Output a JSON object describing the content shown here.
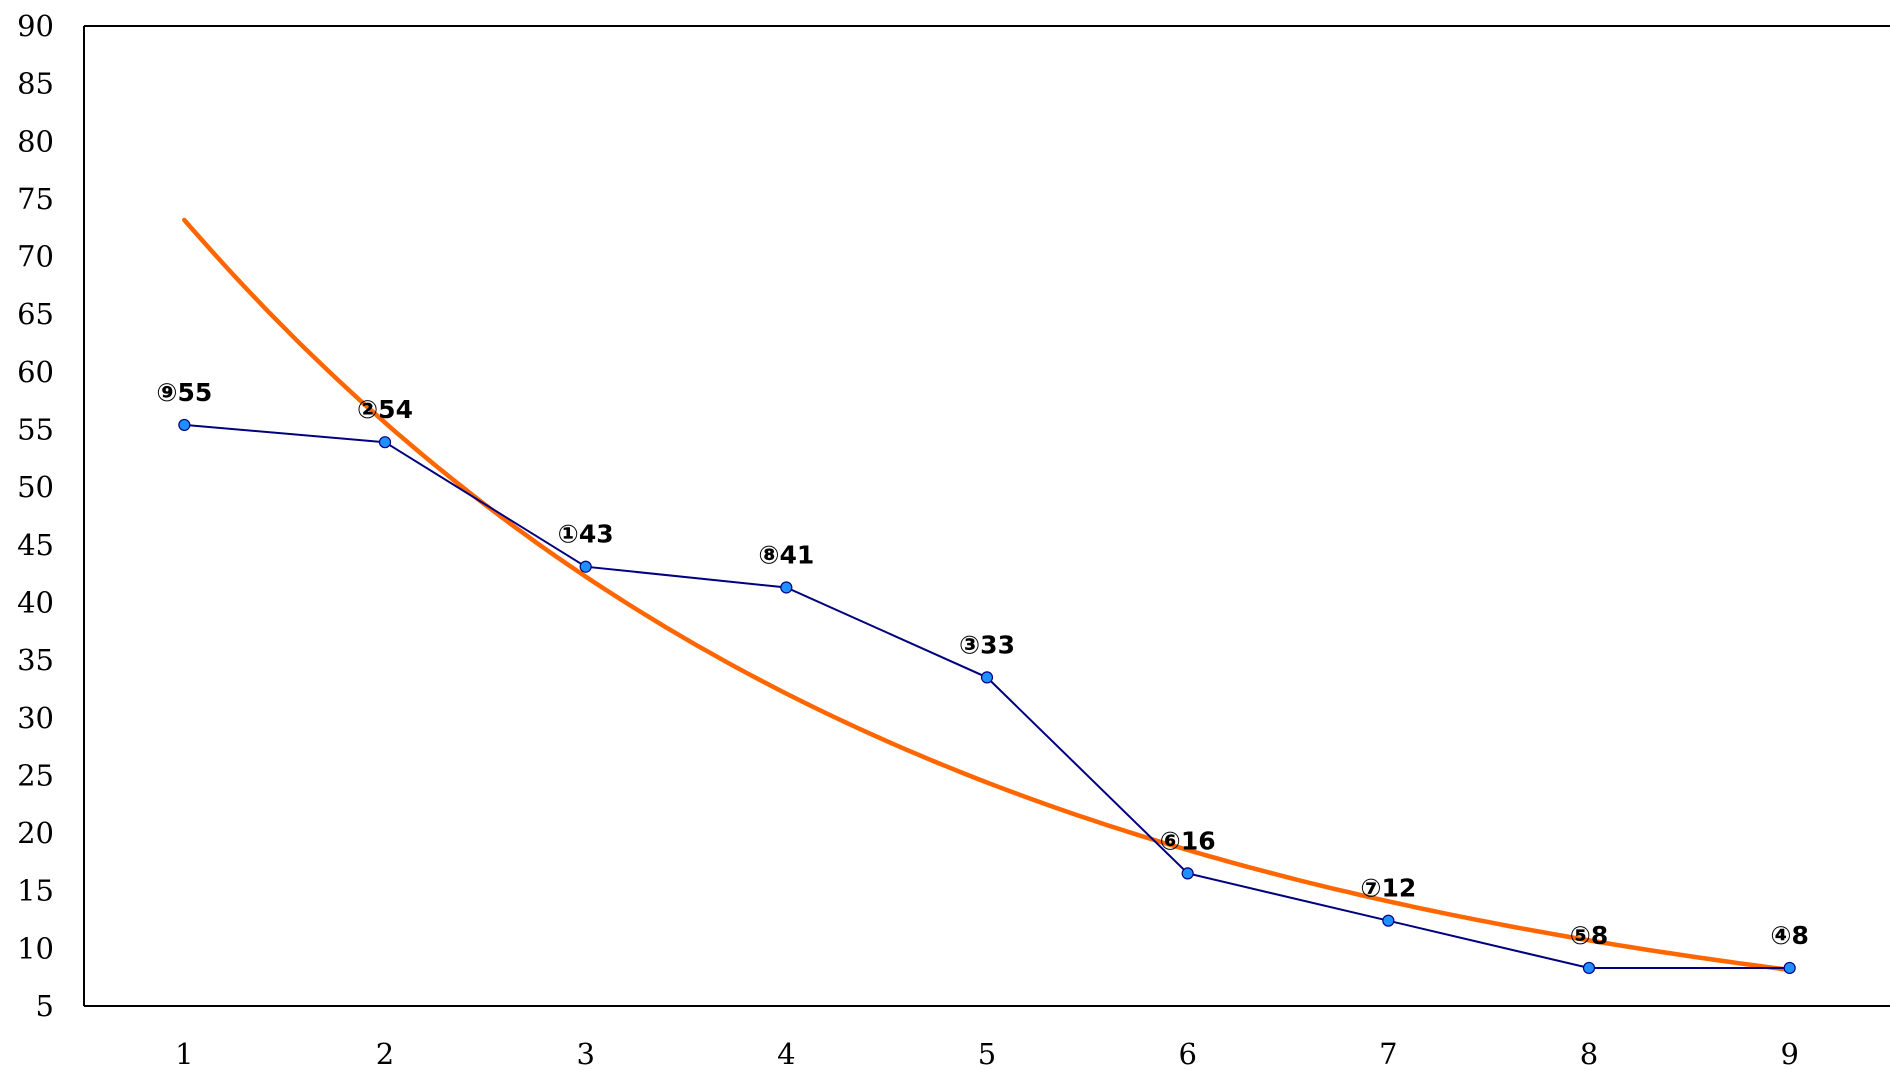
{
  "chart_data": {
    "type": "line",
    "x": [
      1,
      2,
      3,
      4,
      5,
      6,
      7,
      8,
      9
    ],
    "series": [
      {
        "values": [
          55.4,
          53.9,
          43.1,
          41.3,
          33.5,
          16.5,
          12.4,
          8.3,
          8.3
        ],
        "labels": [
          "⑨55",
          "②54",
          "①43",
          "⑧41",
          "③33",
          "⑥16",
          "⑦12",
          "⑤8",
          "④8"
        ],
        "color": "#000080",
        "marker_color": "#1e90ff"
      },
      {
        "trend": "exponential",
        "values": [
          72.2,
          55.1,
          42.2,
          32.3,
          24.7,
          18.9,
          14.4,
          10.6,
          7.9
        ],
        "color": "#ff6600"
      }
    ],
    "xticks": [
      "1",
      "2",
      "3",
      "4",
      "5",
      "6",
      "7",
      "8",
      "9"
    ],
    "yticks": [
      "5",
      "10",
      "15",
      "20",
      "25",
      "30",
      "35",
      "40",
      "45",
      "50",
      "55",
      "60",
      "65",
      "70",
      "75",
      "80",
      "85",
      "90"
    ],
    "xlim": [
      0.5,
      9.5
    ],
    "ylim": [
      5,
      90
    ],
    "grid": false
  }
}
